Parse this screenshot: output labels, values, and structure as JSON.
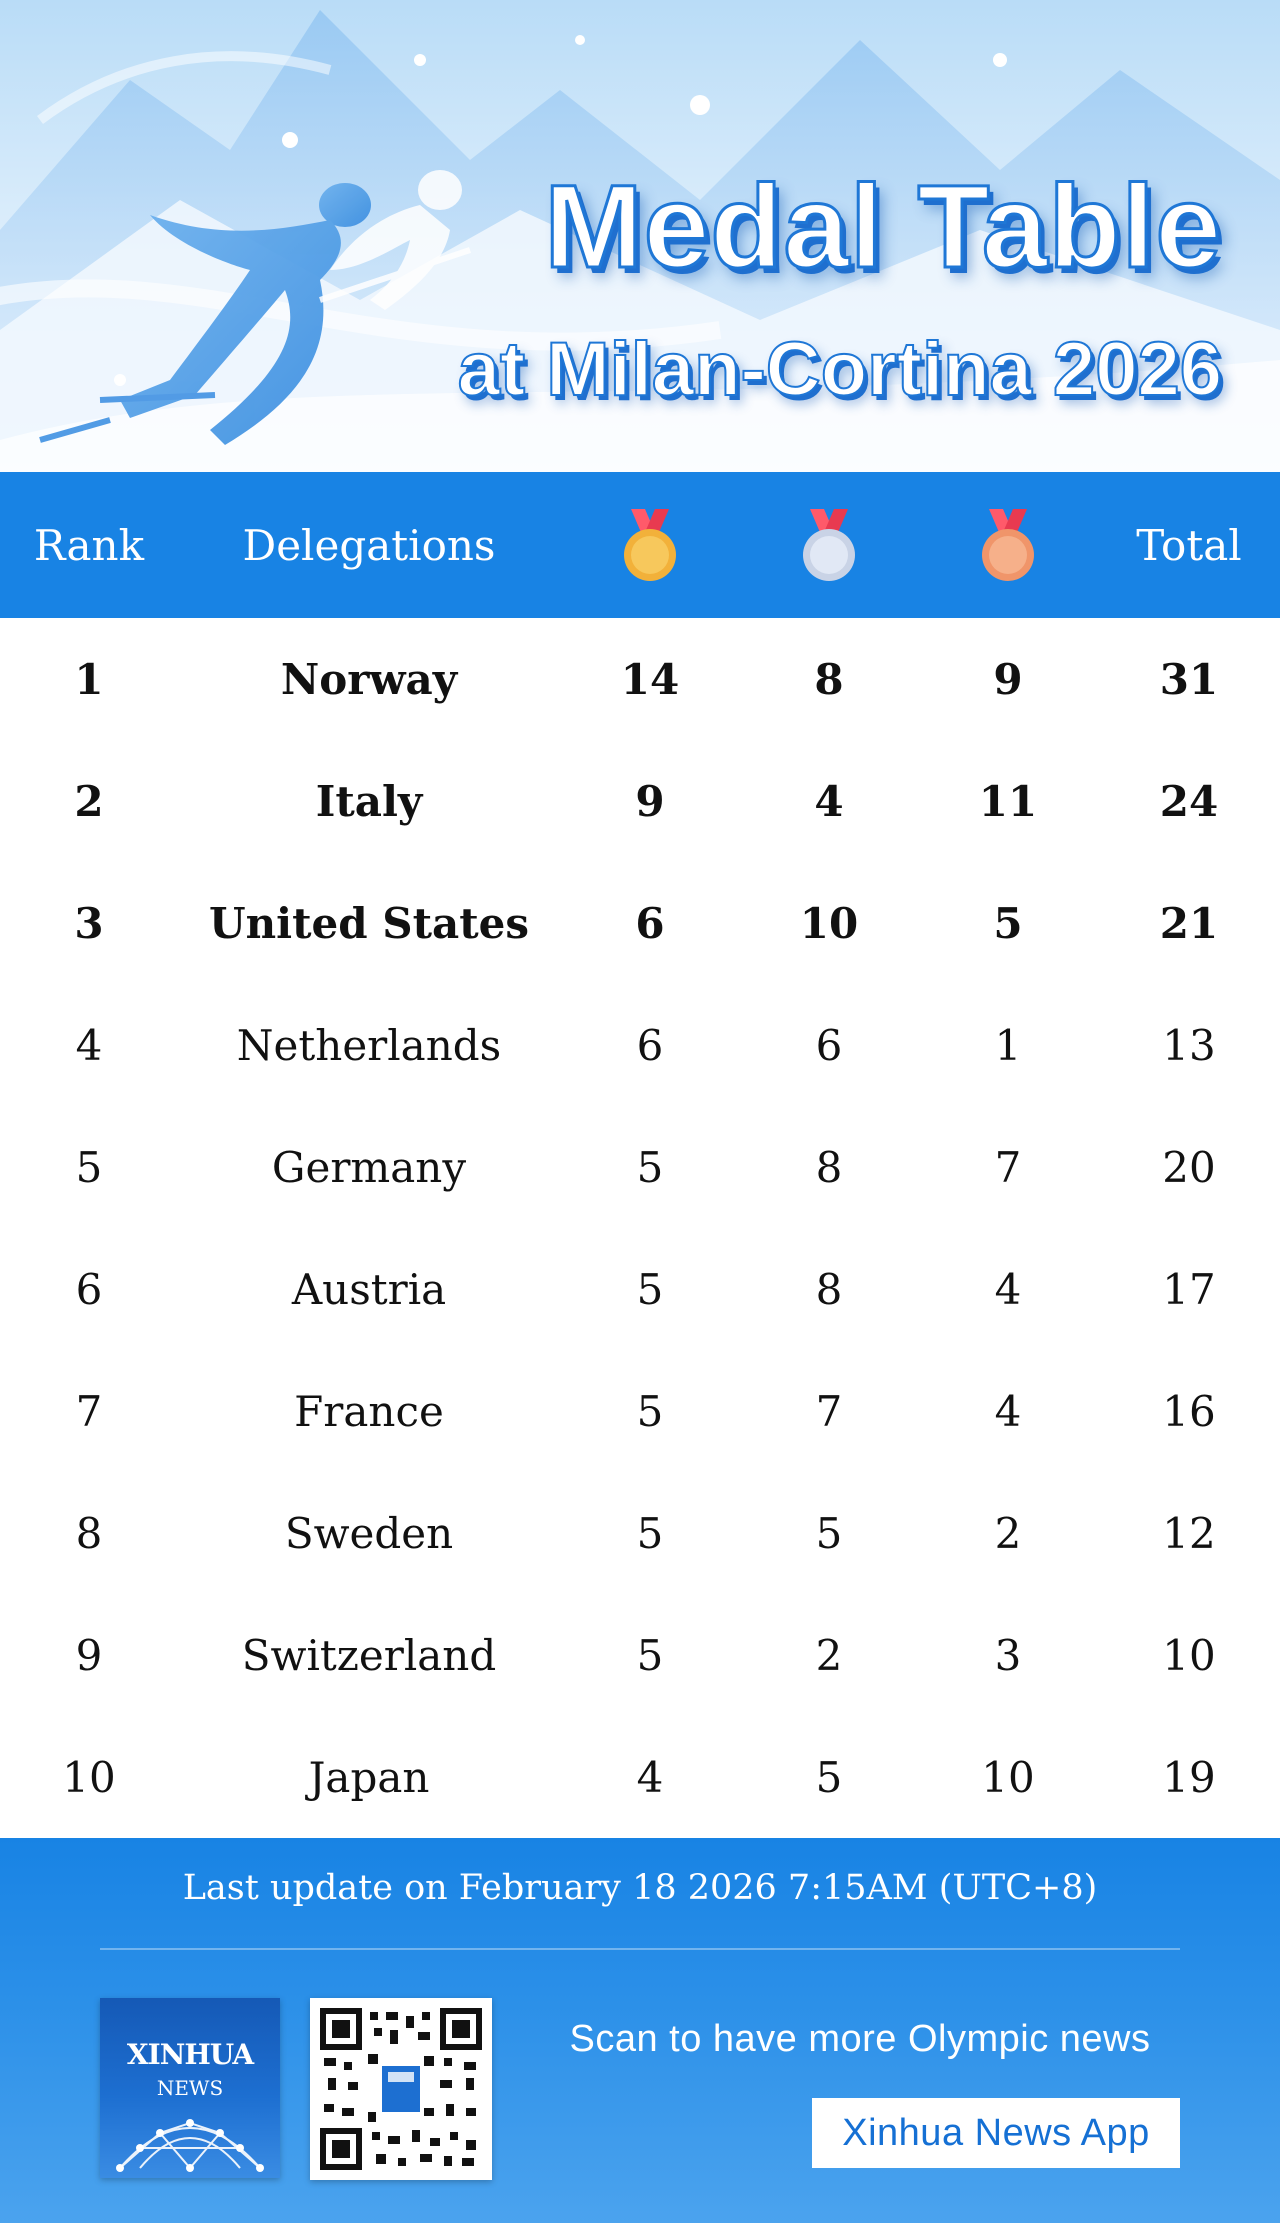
{
  "banner": {
    "title_line1": "Medal Table",
    "title_line2": "at Milan-Cortina 2026"
  },
  "table": {
    "headers": {
      "rank": "Rank",
      "delegations": "Delegations",
      "gold_icon": "gold-medal-icon",
      "silver_icon": "silver-medal-icon",
      "bronze_icon": "bronze-medal-icon",
      "total": "Total"
    },
    "rows": [
      {
        "rank": "1",
        "delegation": "Norway",
        "gold": "14",
        "silver": "8",
        "bronze": "9",
        "total": "31"
      },
      {
        "rank": "2",
        "delegation": "Italy",
        "gold": "9",
        "silver": "4",
        "bronze": "11",
        "total": "24"
      },
      {
        "rank": "3",
        "delegation": "United States",
        "gold": "6",
        "silver": "10",
        "bronze": "5",
        "total": "21"
      },
      {
        "rank": "4",
        "delegation": "Netherlands",
        "gold": "6",
        "silver": "6",
        "bronze": "1",
        "total": "13"
      },
      {
        "rank": "5",
        "delegation": "Germany",
        "gold": "5",
        "silver": "8",
        "bronze": "7",
        "total": "20"
      },
      {
        "rank": "6",
        "delegation": "Austria",
        "gold": "5",
        "silver": "8",
        "bronze": "4",
        "total": "17"
      },
      {
        "rank": "7",
        "delegation": "France",
        "gold": "5",
        "silver": "7",
        "bronze": "4",
        "total": "16"
      },
      {
        "rank": "8",
        "delegation": "Sweden",
        "gold": "5",
        "silver": "5",
        "bronze": "2",
        "total": "12"
      },
      {
        "rank": "9",
        "delegation": "Switzerland",
        "gold": "5",
        "silver": "2",
        "bronze": "3",
        "total": "10"
      },
      {
        "rank": "10",
        "delegation": "Japan",
        "gold": "4",
        "silver": "5",
        "bronze": "10",
        "total": "19"
      }
    ]
  },
  "footer": {
    "last_update": "Last update on February 18 2026 7:15AM (UTC+8)",
    "logo_text": "XINHUA",
    "logo_sub": "NEWS",
    "scan_text": "Scan to have more Olympic news",
    "app_button": "Xinhua News App"
  },
  "colors": {
    "header_blue": "#1883e4",
    "gold": "#f2b13a",
    "silver": "#c9d3e6",
    "bronze": "#f0956a"
  }
}
